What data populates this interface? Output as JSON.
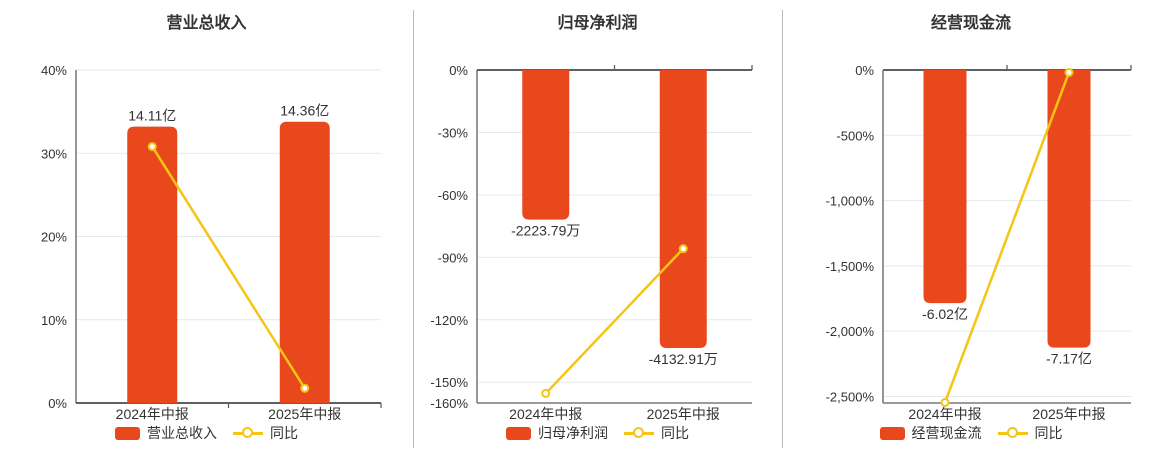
{
  "page": {
    "background": "#ffffff",
    "description_labels": {
      "period_1": "2024年中报",
      "period_2": "2025年中报"
    }
  },
  "colors": {
    "bar": "#E8481C",
    "line": "#F5C513",
    "marker_fill": "#FFFFFF",
    "grid": "#E4EAF0",
    "axis": "#5A6169",
    "text": "#333333",
    "divider": "#BDBDB8"
  },
  "chart_data": [
    {
      "type": "bar",
      "subtype": "bar-with-line-overlay",
      "title": "营业总收入",
      "categories": [
        "2024年中报",
        "2025年中报"
      ],
      "bar_series": {
        "name": "营业总收入",
        "unit": "亿",
        "values": [
          14.11,
          14.36
        ],
        "data_labels": [
          "14.11亿",
          "14.36亿"
        ]
      },
      "line_series": {
        "name": "同比",
        "unit": "%",
        "values": [
          30.8,
          1.77
        ]
      },
      "value_axis": {
        "min": 0,
        "max": 40,
        "zero_position": "bottom",
        "ticks": [
          {
            "value": 40,
            "label": "40%"
          },
          {
            "value": 30,
            "label": "30%"
          },
          {
            "value": 20,
            "label": "20%"
          },
          {
            "value": 10,
            "label": "10%"
          },
          {
            "value": 0,
            "label": "0%"
          }
        ],
        "grid_values": [
          40,
          30,
          20,
          10
        ]
      },
      "legend": [
        "营业总收入",
        "同比"
      ],
      "hidden_bar_axis_max": 17
    },
    {
      "type": "bar",
      "subtype": "bar-with-line-overlay",
      "title": "归母净利润",
      "categories": [
        "2024年中报",
        "2025年中报"
      ],
      "bar_series": {
        "name": "归母净利润",
        "unit": "万",
        "values": [
          -2223.79,
          -4132.91
        ],
        "data_labels": [
          "-2223.79万",
          "-4132.91万"
        ]
      },
      "line_series": {
        "name": "同比",
        "unit": "%",
        "values": [
          -155.4,
          -85.85
        ]
      },
      "value_axis": {
        "min": -160,
        "max": 0,
        "zero_position": "top",
        "ticks": [
          {
            "value": 0,
            "label": "0%"
          },
          {
            "value": -30,
            "label": "-30%"
          },
          {
            "value": -60,
            "label": "-60%"
          },
          {
            "value": -90,
            "label": "-90%"
          },
          {
            "value": -120,
            "label": "-120%"
          },
          {
            "value": -150,
            "label": "-150%"
          },
          {
            "value": -160,
            "label": "-160%"
          }
        ],
        "grid_values": [
          -30,
          -60,
          -90,
          -120,
          -150
        ]
      },
      "legend": [
        "归母净利润",
        "同比"
      ],
      "hidden_bar_axis_max": 4950
    },
    {
      "type": "bar",
      "subtype": "bar-with-line-overlay",
      "title": "经营现金流",
      "categories": [
        "2024年中报",
        "2025年中报"
      ],
      "bar_series": {
        "name": "经营现金流",
        "unit": "亿",
        "values": [
          -6.02,
          -7.17
        ],
        "data_labels": [
          "-6.02亿",
          "-7.17亿"
        ]
      },
      "line_series": {
        "name": "同比",
        "unit": "%",
        "values": [
          -2546,
          -19.1
        ]
      },
      "value_axis": {
        "min": -2550,
        "max": 0,
        "zero_position": "top",
        "ticks": [
          {
            "value": 0,
            "label": "0%"
          },
          {
            "value": -500,
            "label": "-500%"
          },
          {
            "value": -1000,
            "label": "-1,000%"
          },
          {
            "value": -1500,
            "label": "-1,500%"
          },
          {
            "value": -2000,
            "label": "-2,000%"
          },
          {
            "value": -2500,
            "label": "-2,500%"
          }
        ],
        "grid_values": [
          -500,
          -1000,
          -1500,
          -2000,
          -2500
        ]
      },
      "legend": [
        "经营现金流",
        "同比"
      ],
      "hidden_bar_axis_max": 8.6
    }
  ]
}
